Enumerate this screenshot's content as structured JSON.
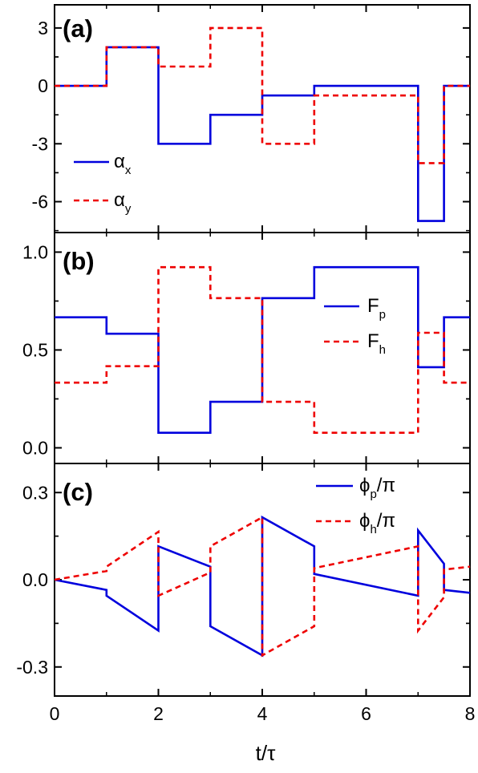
{
  "figure": {
    "xlabel": "t/τ",
    "x_ticks": [
      "0",
      "2",
      "4",
      "6",
      "8"
    ],
    "colors": {
      "solid": "#0000dd",
      "dashed": "#ee0000",
      "axis": "#000000"
    }
  },
  "chart_data": [
    {
      "type": "line",
      "panel_label": "(a)",
      "xlim": [
        0,
        8
      ],
      "ylim": [
        -7.6,
        4.2
      ],
      "y_ticks": [
        3,
        0,
        -3,
        -6
      ],
      "y_tick_labels": [
        "3",
        "0",
        "-3",
        "-6"
      ],
      "legend": {
        "placement": "bottom-left",
        "entries": [
          {
            "symbol": "α",
            "sub": "x",
            "style": "solid"
          },
          {
            "symbol": "α",
            "sub": "y",
            "style": "dashed"
          }
        ]
      },
      "series": [
        {
          "name": "αx",
          "style": "solid",
          "color": "#0000dd",
          "x": [
            0,
            1,
            1,
            2,
            2,
            3,
            3,
            4,
            4,
            5,
            5,
            7,
            7,
            7.5,
            7.5,
            8
          ],
          "y": [
            0,
            0,
            2,
            2,
            -3,
            -3,
            -1.5,
            -1.5,
            -0.5,
            -0.5,
            0,
            0,
            -7,
            -7,
            0,
            0
          ]
        },
        {
          "name": "αy",
          "style": "dashed",
          "color": "#ee0000",
          "x": [
            0,
            1,
            1,
            2,
            2,
            3,
            3,
            4,
            4,
            5,
            5,
            7,
            7,
            7.5,
            7.5,
            8
          ],
          "y": [
            0,
            0,
            2,
            2,
            1,
            1,
            3,
            3,
            -3,
            -3,
            -0.5,
            -0.5,
            -4,
            -4,
            0,
            0
          ]
        }
      ]
    },
    {
      "type": "line",
      "panel_label": "(b)",
      "xlim": [
        0,
        8
      ],
      "ylim": [
        -0.08,
        1.1
      ],
      "y_ticks": [
        1.0,
        0.5,
        0.0
      ],
      "y_tick_labels": [
        "1.0",
        "0.5",
        "0.0"
      ],
      "legend": {
        "placement": "right",
        "entries": [
          {
            "symbol": "F",
            "sub": "p",
            "style": "solid"
          },
          {
            "symbol": "F",
            "sub": "h",
            "style": "dashed"
          }
        ]
      },
      "series": [
        {
          "name": "Fp",
          "style": "solid",
          "color": "#0000dd",
          "x": [
            0,
            1,
            1,
            2,
            2,
            3,
            3,
            4,
            4,
            5,
            5,
            7,
            7,
            7.5,
            7.5,
            8
          ],
          "y": [
            0.667,
            0.667,
            0.583,
            0.583,
            0.077,
            0.077,
            0.235,
            0.235,
            0.765,
            0.765,
            0.923,
            0.923,
            0.412,
            0.412,
            0.667,
            0.667
          ]
        },
        {
          "name": "Fh",
          "style": "dashed",
          "color": "#ee0000",
          "x": [
            0,
            1,
            1,
            2,
            2,
            3,
            3,
            4,
            4,
            5,
            5,
            7,
            7,
            7.5,
            7.5,
            8
          ],
          "y": [
            0.333,
            0.333,
            0.417,
            0.417,
            0.923,
            0.923,
            0.765,
            0.765,
            0.235,
            0.235,
            0.077,
            0.077,
            0.588,
            0.588,
            0.333,
            0.333
          ]
        }
      ]
    },
    {
      "type": "line",
      "panel_label": "(c)",
      "xlim": [
        0,
        8
      ],
      "ylim": [
        -0.4,
        0.4
      ],
      "y_ticks": [
        0.3,
        0.0,
        -0.3
      ],
      "y_tick_labels": [
        "0.3",
        "0.0",
        "-0.3"
      ],
      "legend": {
        "placement": "top-right",
        "entries": [
          {
            "symbol": "ϕ",
            "sub": "p",
            "suffix": "/π",
            "style": "solid"
          },
          {
            "symbol": "ϕ",
            "sub": "h",
            "suffix": "/π",
            "style": "dashed"
          }
        ]
      },
      "series": [
        {
          "name": "ϕp/π",
          "style": "solid",
          "color": "#0000dd",
          "x": [
            0,
            1,
            1,
            2,
            2,
            3,
            3,
            4,
            4,
            5,
            5,
            7,
            7,
            7.5,
            7.5,
            8
          ],
          "y": [
            0,
            -0.035,
            -0.055,
            -0.175,
            0.115,
            0.045,
            -0.16,
            -0.26,
            0.215,
            0.115,
            0.02,
            -0.055,
            0.17,
            0.055,
            -0.035,
            -0.045
          ]
        },
        {
          "name": "ϕh/π",
          "style": "dashed",
          "color": "#ee0000",
          "x": [
            0,
            1,
            1,
            2,
            2,
            3,
            3,
            4,
            4,
            5,
            5,
            7,
            7,
            7.5,
            7.5,
            8
          ],
          "y": [
            0,
            0.03,
            0.045,
            0.165,
            -0.055,
            0.025,
            0.115,
            0.215,
            -0.26,
            -0.16,
            0.04,
            0.115,
            -0.175,
            -0.06,
            0.035,
            0.045
          ]
        }
      ]
    }
  ]
}
